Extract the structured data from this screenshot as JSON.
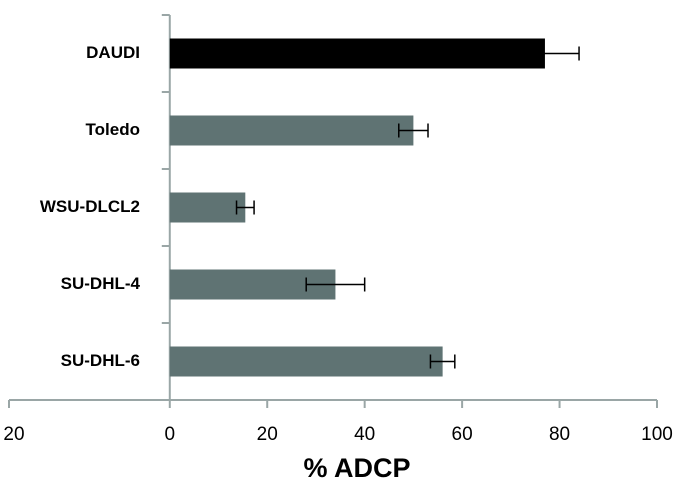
{
  "chart_data": {
    "type": "bar",
    "orientation": "horizontal",
    "categories": [
      "DAUDI",
      "Toledo",
      "WSU-DLCL2",
      "SU-DHL-4",
      "SU-DHL-6"
    ],
    "values": [
      77,
      50,
      15.5,
      34,
      56
    ],
    "errors": [
      7,
      3,
      1.8,
      6,
      2.5
    ],
    "colors": [
      "#000000",
      "#5f7373",
      "#5f7373",
      "#5f7373",
      "#5f7373"
    ],
    "xlabel": "% ADCP",
    "xlim": [
      -33,
      100
    ],
    "xticks": [
      0,
      20,
      40,
      60,
      80,
      100
    ],
    "cropped_label": "20",
    "grid": false
  }
}
